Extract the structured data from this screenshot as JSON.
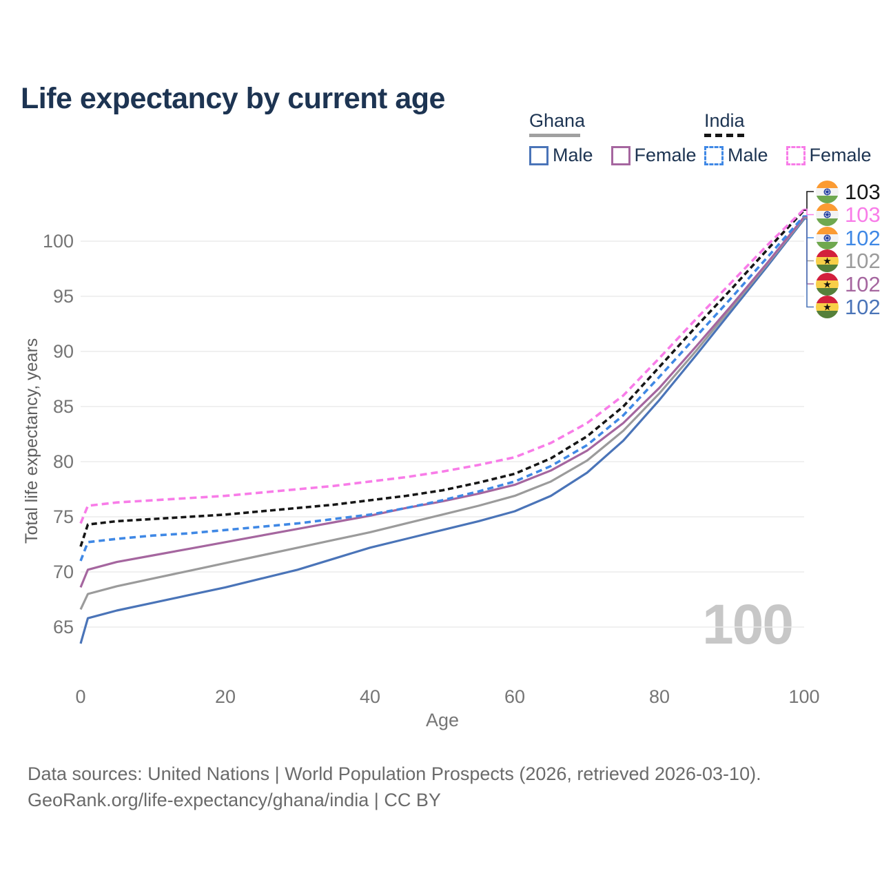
{
  "title": "Life expectancy by current age",
  "legend": {
    "groups": [
      {
        "country": "Ghana",
        "line_style": "solid",
        "underline_color": "#a0a0a0",
        "items": [
          {
            "label": "Male",
            "series": "ghana_male"
          },
          {
            "label": "Female",
            "series": "ghana_female"
          }
        ]
      },
      {
        "country": "India",
        "line_style": "dashed",
        "underline_color": "#161616",
        "items": [
          {
            "label": "Male",
            "series": "india_male"
          },
          {
            "label": "Female",
            "series": "india_female"
          }
        ]
      }
    ]
  },
  "chart_data": {
    "type": "line",
    "title": "Life expectancy by current age",
    "xlabel": "Age",
    "ylabel": "Total life expectancy, years",
    "xticks": [
      0,
      20,
      40,
      60,
      80,
      100
    ],
    "yticks": [
      65,
      70,
      75,
      80,
      85,
      90,
      95,
      100
    ],
    "xlim": [
      0,
      100
    ],
    "ylim": [
      63,
      104
    ],
    "grid": "horizontal-only",
    "legend_position": "top-right",
    "x": [
      0,
      1,
      5,
      10,
      15,
      20,
      25,
      30,
      35,
      40,
      45,
      50,
      55,
      60,
      65,
      70,
      75,
      80,
      85,
      90,
      95,
      100
    ],
    "series": [
      {
        "id": "ghana_male",
        "name": "Ghana Male",
        "country": "Ghana",
        "sex": "Male",
        "color": "#4a74b8",
        "dash": null,
        "values": [
          63.5,
          65.8,
          66.5,
          67.2,
          67.9,
          68.6,
          69.4,
          70.2,
          71.2,
          72.2,
          73.0,
          73.8,
          74.6,
          75.5,
          76.9,
          79.0,
          81.9,
          85.6,
          89.6,
          93.7,
          97.8,
          102.0
        ]
      },
      {
        "id": "ghana_both",
        "name": "Ghana",
        "country": "Ghana",
        "sex": "Both",
        "color": "#9b9b9b",
        "dash": null,
        "values": [
          66.6,
          68.0,
          68.7,
          69.4,
          70.1,
          70.8,
          71.5,
          72.2,
          72.9,
          73.6,
          74.4,
          75.2,
          76.0,
          76.9,
          78.2,
          80.1,
          82.8,
          86.2,
          90.0,
          94.0,
          98.0,
          102.1
        ]
      },
      {
        "id": "ghana_female",
        "name": "Ghana Female",
        "country": "Ghana",
        "sex": "Female",
        "color": "#a5669f",
        "dash": null,
        "values": [
          68.6,
          70.2,
          70.9,
          71.5,
          72.1,
          72.7,
          73.3,
          73.9,
          74.5,
          75.1,
          75.8,
          76.4,
          77.1,
          77.9,
          79.2,
          81.0,
          83.5,
          86.7,
          90.4,
          94.2,
          98.1,
          102.2
        ]
      },
      {
        "id": "india_male",
        "name": "India Male",
        "country": "India",
        "sex": "Male",
        "color": "#3f88e5",
        "dash": "9 6",
        "values": [
          71.0,
          72.7,
          73.0,
          73.3,
          73.5,
          73.8,
          74.1,
          74.4,
          74.8,
          75.2,
          75.8,
          76.5,
          77.3,
          78.2,
          79.6,
          81.5,
          84.2,
          87.7,
          91.3,
          94.9,
          98.6,
          102.3
        ]
      },
      {
        "id": "india_both",
        "name": "India",
        "country": "India",
        "sex": "Both",
        "color": "#161616",
        "dash": "8 5",
        "values": [
          72.3,
          74.3,
          74.6,
          74.8,
          75.0,
          75.2,
          75.5,
          75.8,
          76.1,
          76.5,
          76.9,
          77.4,
          78.1,
          78.9,
          80.3,
          82.3,
          85.0,
          88.6,
          92.2,
          95.7,
          99.3,
          102.8
        ]
      },
      {
        "id": "india_female",
        "name": "India Female",
        "country": "India",
        "sex": "Female",
        "color": "#f87ce8",
        "dash": "10 6",
        "values": [
          74.4,
          76.0,
          76.3,
          76.5,
          76.7,
          76.9,
          77.2,
          77.5,
          77.8,
          78.2,
          78.6,
          79.1,
          79.7,
          80.4,
          81.7,
          83.5,
          86.0,
          89.4,
          92.9,
          96.3,
          99.7,
          102.9
        ]
      }
    ]
  },
  "right_labels": [
    {
      "flag": "india",
      "value": "103",
      "series": "india_both"
    },
    {
      "flag": "india",
      "value": "103",
      "series": "india_female"
    },
    {
      "flag": "india",
      "value": "102",
      "series": "india_male"
    },
    {
      "flag": "ghana",
      "value": "102",
      "series": "ghana_both"
    },
    {
      "flag": "ghana",
      "value": "102",
      "series": "ghana_female"
    },
    {
      "flag": "ghana",
      "value": "102",
      "series": "ghana_male"
    }
  ],
  "watermark": "100",
  "footer": {
    "line1": "Data sources: United Nations | World Population Prospects (2026, retrieved 2026-03-10).",
    "line2": "GeoRank.org/life-expectancy/ghana/india | CC BY"
  },
  "colors": {
    "title_text": "#1d3452",
    "axis_text": "#757575",
    "gridline": "#ebebeb",
    "watermark": "#c7c7c7",
    "footer_text": "#6a6a6a",
    "ghana_flag": {
      "red": "#d2203c",
      "gold": "#f8cf48",
      "green": "#55803a",
      "star": "#111111"
    },
    "india_flag": {
      "saffron": "#fb9b32",
      "white": "#f3f3f3",
      "green": "#6fa84f",
      "chakra": "#16349c"
    }
  }
}
